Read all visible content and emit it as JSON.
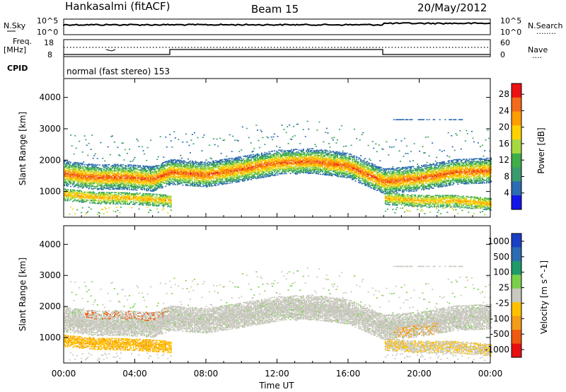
{
  "header": {
    "title_left": "Hankasalmi (fitACF)",
    "title_center": "Beam 15",
    "title_right": "20/May/2012"
  },
  "noise_panel": {
    "left_label": "N.Sky",
    "left_tick_top": "10^5",
    "left_tick_bottom": "10^0",
    "right_tick_top": "10^5",
    "right_tick_bottom": "10^0",
    "right_label": "N.Search",
    "right_label_dots": "........"
  },
  "freq_panel": {
    "left_label_line1": "Freq.",
    "left_label_line2": "[MHz]",
    "left_tick_top": "18",
    "left_tick_bottom": "8",
    "right_tick_top": "60",
    "right_tick_bottom": "0",
    "right_label": "Nave",
    "right_label_dots": "...."
  },
  "cpid_panel": {
    "label": "CPID",
    "mode_text": "normal (fast stereo) 153"
  },
  "power_panel": {
    "ylabel": "Slant Range [km]",
    "yticks": [
      "4000",
      "3000",
      "2000",
      "1000"
    ],
    "colorbar_label": "Power [dB]",
    "colorbar_ticks": [
      "28",
      "24",
      "20",
      "16",
      "12",
      "8",
      "4"
    ],
    "colorbar_colors": [
      "#ee1111",
      "#f26a1a",
      "#ff9d00",
      "#ffd200",
      "#a8d840",
      "#3fae49",
      "#3a9a70",
      "#2d6bb2",
      "#1414e8"
    ]
  },
  "velocity_panel": {
    "ylabel": "Slant Range [km]",
    "yticks": [
      "4000",
      "3000",
      "2000",
      "1000"
    ],
    "colorbar_label": "Velocity [m s^-1]",
    "colorbar_ticks": [
      "1000",
      "500",
      "100",
      "25",
      "-25",
      "-100",
      "-500",
      "-1000"
    ],
    "colorbar_colors": [
      "#1a3fc4",
      "#2d6bb2",
      "#1f9a6a",
      "#7ad04a",
      "#c8c8be",
      "#ffc000",
      "#f29c1a",
      "#f05a10",
      "#e81010"
    ]
  },
  "xaxis": {
    "label": "Time UT",
    "ticks": [
      "00:00",
      "04:00",
      "08:00",
      "12:00",
      "16:00",
      "20:00",
      "00:00"
    ]
  },
  "chart_data": {
    "type": "heatmap",
    "title": "Hankasalmi (fitACF) Beam 15 20/May/2012",
    "xlabel": "Time UT",
    "ylabel": "Slant Range [km]",
    "x_range_hours": [
      0,
      24
    ],
    "y_range_km": [
      180,
      4600
    ],
    "power_colorbar_range_db": [
      0,
      30
    ],
    "velocity_colorbar_range": [
      -1000,
      1000
    ],
    "cpid": "normal (fast stereo) 153",
    "power_band_centers": [
      {
        "t": 0,
        "r": 1560
      },
      {
        "t": 1,
        "r": 1480
      },
      {
        "t": 2,
        "r": 1430
      },
      {
        "t": 3,
        "r": 1450
      },
      {
        "t": 4,
        "r": 1420
      },
      {
        "t": 5,
        "r": 1380
      },
      {
        "t": 6,
        "r": 1600
      },
      {
        "t": 8,
        "r": 1520
      },
      {
        "t": 10,
        "r": 1700
      },
      {
        "t": 12,
        "r": 1900
      },
      {
        "t": 14,
        "r": 1950
      },
      {
        "t": 16,
        "r": 1800
      },
      {
        "t": 18,
        "r": 1300
      },
      {
        "t": 20,
        "r": 1400
      },
      {
        "t": 22,
        "r": 1600
      },
      {
        "t": 24,
        "r": 1650
      }
    ],
    "power_lower_band_centers": [
      {
        "t": 0,
        "r": 900
      },
      {
        "t": 2,
        "r": 800
      },
      {
        "t": 4,
        "r": 780
      },
      {
        "t": 6,
        "r": 700
      },
      {
        "t": 18,
        "r": 780
      },
      {
        "t": 20,
        "r": 700
      },
      {
        "t": 22,
        "r": 700
      },
      {
        "t": 24,
        "r": 600
      }
    ]
  }
}
